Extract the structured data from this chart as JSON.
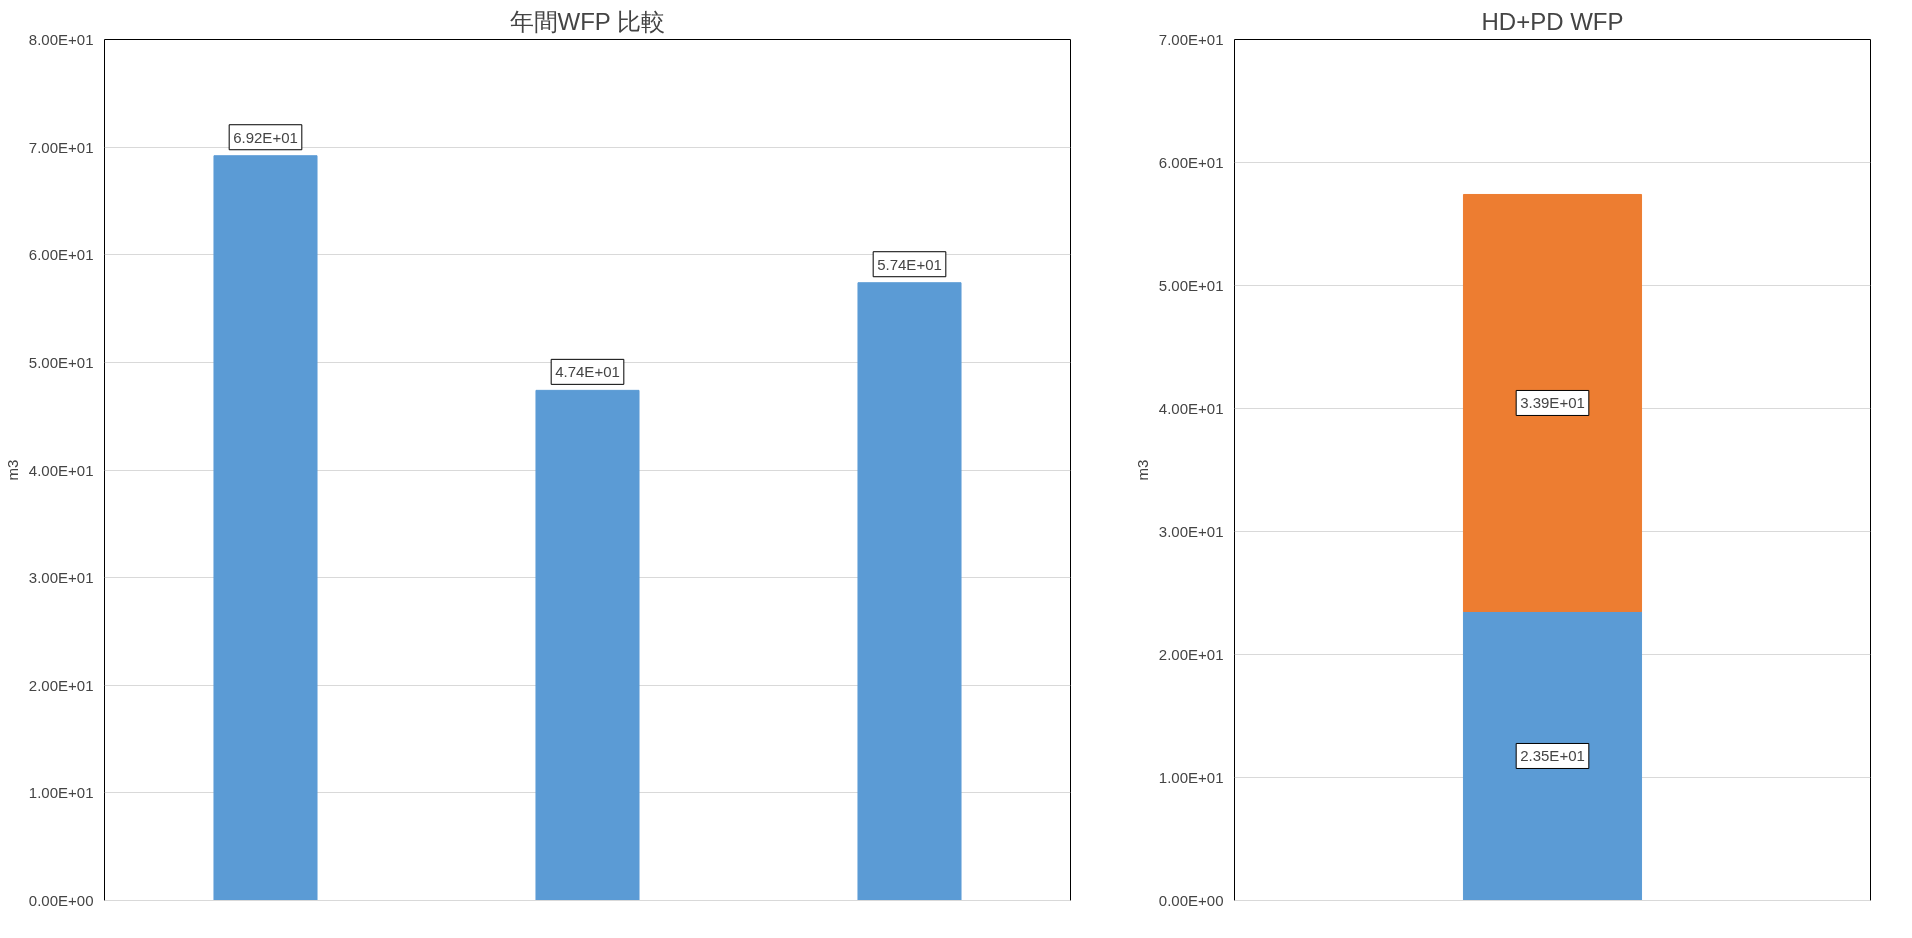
{
  "chart_data": [
    {
      "type": "bar",
      "title": "年間WFP 比較",
      "ylabel": "m3",
      "categories": [
        null,
        null,
        null
      ],
      "series": [
        {
          "color": "#5b9bd5",
          "values": [
            69.2,
            47.4,
            57.4
          ],
          "value_labels": [
            "6.92E+01",
            "4.74E+01",
            "5.74E+01"
          ]
        }
      ],
      "ylim": [
        0,
        80
      ],
      "yticks": [
        {
          "value": 0,
          "label": "0.00E+00"
        },
        {
          "value": 10,
          "label": "1.00E+01"
        },
        {
          "value": 20,
          "label": "2.00E+01"
        },
        {
          "value": 30,
          "label": "3.00E+01"
        },
        {
          "value": 40,
          "label": "4.00E+01"
        },
        {
          "value": 50,
          "label": "5.00E+01"
        },
        {
          "value": 60,
          "label": "6.00E+01"
        },
        {
          "value": 70,
          "label": "7.00E+01"
        },
        {
          "value": 80,
          "label": "8.00E+01"
        }
      ],
      "grid": "y"
    },
    {
      "type": "bar",
      "title": "HD+PD WFP",
      "ylabel": "m3",
      "categories": [
        null
      ],
      "stacked": true,
      "series": [
        {
          "color": "#5b9bd5",
          "values": [
            23.5
          ],
          "value_labels": [
            "2.35E+01"
          ]
        },
        {
          "color": "#ed7d31",
          "values": [
            33.9
          ],
          "value_labels": [
            "3.39E+01"
          ]
        }
      ],
      "ylim": [
        0,
        70
      ],
      "yticks": [
        {
          "value": 0,
          "label": "0.00E+00"
        },
        {
          "value": 10,
          "label": "1.00E+01"
        },
        {
          "value": 20,
          "label": "2.00E+01"
        },
        {
          "value": 30,
          "label": "3.00E+01"
        },
        {
          "value": 40,
          "label": "4.00E+01"
        },
        {
          "value": 50,
          "label": "5.00E+01"
        },
        {
          "value": 60,
          "label": "6.00E+01"
        },
        {
          "value": 70,
          "label": "7.00E+01"
        }
      ],
      "grid": "y"
    }
  ]
}
